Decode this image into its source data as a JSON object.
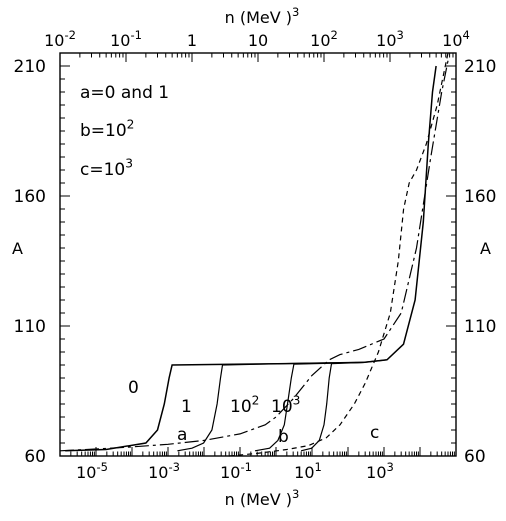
{
  "chart_data": {
    "type": "line",
    "bottom_axis": {
      "label": "n  (MeV )",
      "label_exp": "3",
      "scale": "log",
      "range": [
        1e-06,
        100000.0
      ],
      "ticklabels": [
        {
          "base": "10",
          "exp": "-5",
          "value": 1e-05
        },
        {
          "base": "10",
          "exp": "-3",
          "value": 0.001
        },
        {
          "base": "10",
          "exp": "-1",
          "value": 0.1
        },
        {
          "base": "10",
          "exp": "1",
          "value": 10.0
        },
        {
          "base": "10",
          "exp": "3",
          "value": 1000.0
        }
      ]
    },
    "top_axis": {
      "label": "n  (MeV )",
      "label_exp": "3",
      "scale": "log",
      "range": [
        0.01,
        10000.0
      ],
      "ticklabels": [
        {
          "base": "10",
          "exp": "-2",
          "value": 0.01
        },
        {
          "base": "10",
          "exp": "-1",
          "value": 0.1
        },
        {
          "base": "1",
          "exp": "",
          "value": 1
        },
        {
          "base": "10",
          "exp": "",
          "value": 10.0
        },
        {
          "base": "10",
          "exp": "2",
          "value": 100.0
        },
        {
          "base": "10",
          "exp": "3",
          "value": 1000.0
        },
        {
          "base": "10",
          "exp": "4",
          "value": 10000.0
        }
      ]
    },
    "left_axis": {
      "label": "A",
      "range": [
        60,
        215
      ],
      "ticks": [
        60,
        110,
        160,
        210
      ]
    },
    "right_axis": {
      "label": "A",
      "range": [
        60,
        215
      ],
      "ticks": [
        60,
        110,
        160,
        210
      ]
    },
    "legend": {
      "position": "top-left",
      "entries": [
        {
          "text": "a=0  and  1"
        },
        {
          "text": "b=10",
          "exp": "2"
        },
        {
          "text": "c=10",
          "exp": "3"
        }
      ]
    },
    "series": [
      {
        "axis": "top",
        "style": "solid",
        "points": [
          [
            0.012,
            62
          ],
          [
            0.05,
            62.5
          ],
          [
            0.2,
            65
          ],
          [
            0.3,
            70
          ],
          [
            0.38,
            80
          ],
          [
            0.45,
            90
          ],
          [
            0.5,
            95
          ],
          [
            2,
            95.2
          ],
          [
            20,
            95.5
          ],
          [
            400,
            96
          ],
          [
            900,
            97
          ],
          [
            1600,
            103
          ],
          [
            2400,
            120
          ],
          [
            3200,
            150
          ],
          [
            3800,
            180
          ],
          [
            4400,
            200
          ],
          [
            5000,
            210
          ]
        ]
      },
      {
        "axis": "top",
        "style": "solid",
        "points": [
          [
            0.6,
            62
          ],
          [
            1.0,
            63
          ],
          [
            1.5,
            65
          ],
          [
            2.0,
            70
          ],
          [
            2.4,
            80
          ],
          [
            2.7,
            90
          ],
          [
            2.9,
            95
          ],
          [
            20,
            95.5
          ],
          [
            400,
            96
          ],
          [
            900,
            97
          ]
        ]
      },
      {
        "axis": "top",
        "style": "solid",
        "points": [
          [
            9,
            62
          ],
          [
            15,
            63
          ],
          [
            20,
            66
          ],
          [
            25,
            72
          ],
          [
            28,
            80
          ],
          [
            32,
            90
          ],
          [
            35,
            95.3
          ],
          [
            400,
            96
          ]
        ]
      },
      {
        "axis": "top",
        "style": "solid",
        "points": [
          [
            45,
            62
          ],
          [
            65,
            63
          ],
          [
            85,
            66
          ],
          [
            100,
            72
          ],
          [
            110,
            80
          ],
          [
            120,
            90
          ],
          [
            130,
            95.5
          ],
          [
            400,
            96
          ]
        ]
      },
      {
        "axis": "bottom",
        "style": "dashdot",
        "points": [
          [
            1e-06,
            62
          ],
          [
            1e-05,
            62.7
          ],
          [
            0.0001,
            63.5
          ],
          [
            0.001,
            64.5
          ],
          [
            0.01,
            66
          ],
          [
            0.1,
            68.5
          ],
          [
            0.5,
            72
          ],
          [
            1,
            75
          ],
          [
            3,
            82
          ],
          [
            10,
            91
          ],
          [
            30,
            97
          ],
          [
            60,
            99
          ],
          [
            200,
            101
          ],
          [
            1000,
            105
          ],
          [
            3000,
            115
          ],
          [
            8000,
            140
          ],
          [
            20000,
            175
          ],
          [
            40000,
            200
          ],
          [
            60000,
            212
          ]
        ]
      },
      {
        "axis": "bottom",
        "style": "dashed",
        "points": [
          [
            0.05,
            60
          ],
          [
            0.3,
            61
          ],
          [
            2,
            62.5
          ],
          [
            8,
            64
          ],
          [
            25,
            67
          ],
          [
            60,
            72
          ],
          [
            150,
            80
          ],
          [
            300,
            88
          ],
          [
            700,
            100
          ],
          [
            1500,
            115
          ],
          [
            2500,
            135
          ],
          [
            3500,
            155
          ],
          [
            5000,
            165
          ],
          [
            8000,
            170
          ],
          [
            15000,
            180
          ],
          [
            30000,
            195
          ],
          [
            60000,
            215
          ]
        ]
      }
    ],
    "curve_labels": [
      {
        "text": "0"
      },
      {
        "text": "1"
      },
      {
        "text": "10",
        "exp": "2"
      },
      {
        "text": "10",
        "exp": "3"
      },
      {
        "text": "a"
      },
      {
        "text": "b"
      },
      {
        "text": "c"
      }
    ]
  }
}
